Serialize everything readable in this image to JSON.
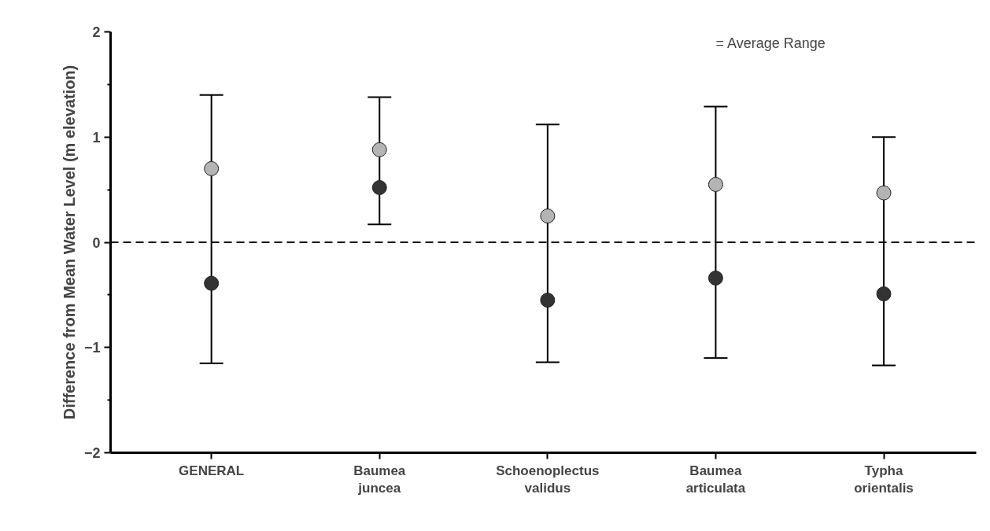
{
  "chart_data": {
    "type": "scatter",
    "ylabel": "Difference from Mean Water Level (m elevation)",
    "categories": [
      "GENERAL",
      "Baumea juncea",
      "Schoenoplectus validus",
      "Baumea articulata",
      "Typha orientalis"
    ],
    "series": [
      {
        "color": "#b4b4b4",
        "values": [
          0.7,
          0.88,
          0.25,
          0.55,
          0.47
        ],
        "errors": [
          [
            -1.15,
            1.4
          ],
          [
            0.17,
            1.38
          ],
          [
            -1.14,
            1.12
          ],
          [
            -1.1,
            1.29
          ],
          [
            -1.17,
            1.0
          ]
        ]
      },
      {
        "color": "#333333",
        "values": [
          -0.39,
          0.52,
          -0.55,
          -0.34,
          -0.49
        ]
      }
    ],
    "marker": "circle",
    "ylim": [
      -2,
      2
    ],
    "yticks": [
      -2,
      {
        "value": -1.5,
        "label": null
      },
      -1,
      {
        "value": -0.5,
        "label": null
      },
      0,
      {
        "value": 0.5,
        "label": null
      },
      1,
      {
        "value": 1.5,
        "label": null
      },
      2
    ],
    "ref_lines": [
      {
        "axis": "y",
        "value": 0,
        "line_style": "dashed",
        "color": "#000000"
      }
    ],
    "annotations": [
      "= Average Range"
    ],
    "grid": false
  }
}
